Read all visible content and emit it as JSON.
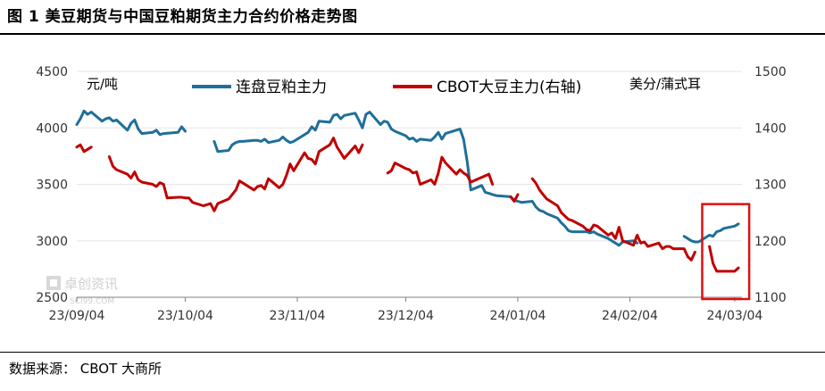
{
  "header": {
    "title": "图 1 美豆期货与中国豆粕期货主力合约价格走势图"
  },
  "footer": {
    "source": "数据来源： CBOT   大商所"
  },
  "watermark": {
    "text": "卓创资讯",
    "subtext": "SCI99.COM"
  },
  "colors": {
    "series_left": "#1f6f9a",
    "series_right": "#c00000",
    "highlight_box": "#e01010",
    "axis": "#808080"
  },
  "chart_data": {
    "type": "line",
    "left_axis": {
      "unit_label": "元/吨",
      "ticks": [
        2500,
        3000,
        3500,
        4000,
        4500
      ],
      "ylim": [
        2500,
        4500
      ]
    },
    "right_axis": {
      "unit_label": "美分/蒲式耳",
      "ticks": [
        1100,
        1200,
        1300,
        1400,
        1500
      ],
      "ylim": [
        1100,
        1500
      ]
    },
    "x_axis": {
      "ticks": [
        "23/09/04",
        "23/10/04",
        "23/11/04",
        "23/12/04",
        "24/01/04",
        "24/02/04",
        "24/03/04"
      ],
      "xlim": [
        "2023-09-04",
        "2024-03-06"
      ]
    },
    "legend_position": "top",
    "highlight": {
      "x_from": "2024-02-24",
      "x_to": "2024-03-08",
      "y_from": 1100,
      "y_to": 1265,
      "axis": "right"
    },
    "series": [
      {
        "name": "连盘豆粕主力",
        "axis": "left",
        "color": "#1f6f9a",
        "segments": [
          [
            [
              "2023-09-04",
              4030
            ],
            [
              "2023-09-05",
              4080
            ],
            [
              "2023-09-06",
              4150
            ],
            [
              "2023-09-07",
              4120
            ],
            [
              "2023-09-08",
              4140
            ],
            [
              "2023-09-11",
              4060
            ],
            [
              "2023-09-12",
              4080
            ],
            [
              "2023-09-13",
              4090
            ],
            [
              "2023-09-14",
              4060
            ],
            [
              "2023-09-15",
              4070
            ],
            [
              "2023-09-18",
              3980
            ],
            [
              "2023-09-19",
              4040
            ],
            [
              "2023-09-20",
              4070
            ],
            [
              "2023-09-21",
              3990
            ],
            [
              "2023-09-22",
              3950
            ],
            [
              "2023-09-25",
              3960
            ],
            [
              "2023-09-26",
              3980
            ],
            [
              "2023-09-27",
              3940
            ],
            [
              "2023-09-28",
              3950
            ],
            [
              "2023-10-02",
              3960
            ],
            [
              "2023-10-03",
              4010
            ],
            [
              "2023-10-04",
              3970
            ]
          ],
          [
            [
              "2023-10-12",
              3880
            ],
            [
              "2023-10-13",
              3790
            ],
            [
              "2023-10-16",
              3800
            ],
            [
              "2023-10-17",
              3850
            ],
            [
              "2023-10-18",
              3870
            ],
            [
              "2023-10-19",
              3880
            ],
            [
              "2023-10-20",
              3880
            ],
            [
              "2023-10-23",
              3890
            ],
            [
              "2023-10-24",
              3890
            ],
            [
              "2023-10-25",
              3880
            ],
            [
              "2023-10-26",
              3900
            ],
            [
              "2023-10-27",
              3870
            ],
            [
              "2023-10-30",
              3890
            ],
            [
              "2023-10-31",
              3920
            ],
            [
              "2023-11-01",
              3890
            ],
            [
              "2023-11-02",
              3870
            ],
            [
              "2023-11-03",
              3880
            ],
            [
              "2023-11-06",
              3940
            ],
            [
              "2023-11-07",
              3960
            ],
            [
              "2023-11-08",
              4010
            ],
            [
              "2023-11-09",
              3980
            ],
            [
              "2023-11-10",
              4060
            ],
            [
              "2023-11-13",
              4050
            ],
            [
              "2023-11-14",
              4110
            ],
            [
              "2023-11-15",
              4120
            ],
            [
              "2023-11-16",
              4080
            ],
            [
              "2023-11-17",
              4110
            ],
            [
              "2023-11-20",
              4130
            ],
            [
              "2023-11-21",
              4070
            ],
            [
              "2023-11-22",
              4000
            ],
            [
              "2023-11-23",
              4120
            ],
            [
              "2023-11-24",
              4140
            ],
            [
              "2023-11-27",
              4030
            ],
            [
              "2023-11-28",
              4060
            ],
            [
              "2023-11-29",
              4050
            ],
            [
              "2023-11-30",
              3990
            ],
            [
              "2023-12-01",
              3970
            ],
            [
              "2023-12-04",
              3930
            ],
            [
              "2023-12-05",
              3900
            ],
            [
              "2023-12-06",
              3910
            ],
            [
              "2023-12-07",
              3880
            ],
            [
              "2023-12-08",
              3900
            ],
            [
              "2023-12-11",
              3890
            ],
            [
              "2023-12-12",
              3920
            ],
            [
              "2023-12-13",
              3960
            ],
            [
              "2023-12-14",
              3900
            ],
            [
              "2023-12-15",
              3950
            ],
            [
              "2023-12-18",
              3980
            ],
            [
              "2023-12-19",
              3990
            ],
            [
              "2023-12-20",
              3900
            ],
            [
              "2023-12-21",
              3700
            ],
            [
              "2023-12-22",
              3450
            ],
            [
              "2023-12-25",
              3490
            ],
            [
              "2023-12-26",
              3430
            ],
            [
              "2023-12-27",
              3420
            ],
            [
              "2023-12-28",
              3410
            ],
            [
              "2023-12-29",
              3400
            ],
            [
              "2024-01-02",
              3390
            ],
            [
              "2024-01-03",
              3360
            ],
            [
              "2024-01-04",
              3350
            ],
            [
              "2024-01-05",
              3340
            ],
            [
              "2024-01-08",
              3350
            ],
            [
              "2024-01-09",
              3300
            ],
            [
              "2024-01-10",
              3270
            ],
            [
              "2024-01-11",
              3260
            ],
            [
              "2024-01-12",
              3240
            ],
            [
              "2024-01-15",
              3200
            ],
            [
              "2024-01-16",
              3160
            ],
            [
              "2024-01-17",
              3130
            ],
            [
              "2024-01-18",
              3090
            ],
            [
              "2024-01-19",
              3080
            ],
            [
              "2024-01-22",
              3080
            ],
            [
              "2024-01-23",
              3080
            ],
            [
              "2024-01-24",
              3070
            ],
            [
              "2024-01-25",
              3080
            ],
            [
              "2024-01-26",
              3060
            ],
            [
              "2024-01-29",
              3020
            ],
            [
              "2024-01-30",
              3000
            ],
            [
              "2024-01-31",
              2980
            ],
            [
              "2024-02-01",
              2960
            ],
            [
              "2024-02-02",
              2990
            ],
            [
              "2024-02-05",
              3000
            ],
            [
              "2024-02-06",
              2980
            ]
          ],
          [
            [
              "2024-02-19",
              3040
            ],
            [
              "2024-02-20",
              3020
            ],
            [
              "2024-02-21",
              3000
            ],
            [
              "2024-02-22",
              2990
            ],
            [
              "2024-02-23",
              2990
            ],
            [
              "2024-02-26",
              3050
            ],
            [
              "2024-02-27",
              3040
            ],
            [
              "2024-02-28",
              3080
            ],
            [
              "2024-02-29",
              3090
            ],
            [
              "2024-03-01",
              3110
            ],
            [
              "2024-03-04",
              3130
            ],
            [
              "2024-03-05",
              3150
            ]
          ]
        ]
      },
      {
        "name": "CBOT大豆主力(右轴)",
        "axis": "right",
        "color": "#c00000",
        "segments": [
          [
            [
              "2023-09-04",
              1366
            ],
            [
              "2023-09-05",
              1370
            ],
            [
              "2023-09-06",
              1358
            ],
            [
              "2023-09-07",
              1362
            ],
            [
              "2023-09-08",
              1366
            ]
          ],
          [
            [
              "2023-09-13",
              1349
            ],
            [
              "2023-09-14",
              1332
            ],
            [
              "2023-09-15",
              1326
            ],
            [
              "2023-09-18",
              1318
            ],
            [
              "2023-09-19",
              1311
            ],
            [
              "2023-09-20",
              1322
            ],
            [
              "2023-09-21",
              1308
            ],
            [
              "2023-09-22",
              1304
            ],
            [
              "2023-09-25",
              1300
            ],
            [
              "2023-09-26",
              1296
            ],
            [
              "2023-09-27",
              1303
            ],
            [
              "2023-09-28",
              1300
            ],
            [
              "2023-09-29",
              1276
            ],
            [
              "2023-10-02",
              1277
            ],
            [
              "2023-10-03",
              1277
            ],
            [
              "2023-10-04",
              1276
            ],
            [
              "2023-10-05",
              1276
            ],
            [
              "2023-10-06",
              1268
            ],
            [
              "2023-10-09",
              1262
            ],
            [
              "2023-10-10",
              1264
            ],
            [
              "2023-10-11",
              1266
            ],
            [
              "2023-10-12",
              1253
            ],
            [
              "2023-10-13",
              1266
            ],
            [
              "2023-10-16",
              1274
            ],
            [
              "2023-10-17",
              1282
            ],
            [
              "2023-10-18",
              1290
            ],
            [
              "2023-10-19",
              1306
            ],
            [
              "2023-10-20",
              1302
            ],
            [
              "2023-10-23",
              1290
            ],
            [
              "2023-10-24",
              1296
            ],
            [
              "2023-10-25",
              1298
            ],
            [
              "2023-10-26",
              1292
            ],
            [
              "2023-10-27",
              1310
            ],
            [
              "2023-10-30",
              1294
            ],
            [
              "2023-10-31",
              1300
            ],
            [
              "2023-11-01",
              1316
            ],
            [
              "2023-11-02",
              1336
            ],
            [
              "2023-11-03",
              1324
            ],
            [
              "2023-11-06",
              1356
            ],
            [
              "2023-11-07",
              1346
            ],
            [
              "2023-11-08",
              1344
            ],
            [
              "2023-11-09",
              1336
            ],
            [
              "2023-11-10",
              1358
            ],
            [
              "2023-11-13",
              1370
            ],
            [
              "2023-11-14",
              1382
            ],
            [
              "2023-11-15",
              1366
            ],
            [
              "2023-11-16",
              1356
            ],
            [
              "2023-11-17",
              1346
            ],
            [
              "2023-11-20",
              1368
            ],
            [
              "2023-11-21",
              1356
            ],
            [
              "2023-11-22",
              1370
            ]
          ],
          [
            [
              "2023-11-29",
              1320
            ],
            [
              "2023-11-30",
              1324
            ],
            [
              "2023-12-01",
              1338
            ],
            [
              "2023-12-04",
              1328
            ],
            [
              "2023-12-05",
              1326
            ],
            [
              "2023-12-06",
              1320
            ],
            [
              "2023-12-07",
              1322
            ],
            [
              "2023-12-08",
              1300
            ],
            [
              "2023-12-11",
              1308
            ],
            [
              "2023-12-12",
              1300
            ],
            [
              "2023-12-13",
              1320
            ],
            [
              "2023-12-14",
              1348
            ],
            [
              "2023-12-15",
              1338
            ],
            [
              "2023-12-18",
              1318
            ],
            [
              "2023-12-19",
              1326
            ],
            [
              "2023-12-20",
              1320
            ],
            [
              "2023-12-21",
              1316
            ],
            [
              "2023-12-22",
              1304
            ],
            [
              "2023-12-27",
              1318
            ],
            [
              "2023-12-28",
              1300
            ]
          ],
          [
            [
              "2024-01-02",
              1278
            ],
            [
              "2024-01-03",
              1270
            ],
            [
              "2024-01-04",
              1282
            ]
          ],
          [
            [
              "2024-01-08",
              1310
            ],
            [
              "2024-01-09",
              1302
            ],
            [
              "2024-01-10",
              1290
            ],
            [
              "2024-01-11",
              1282
            ],
            [
              "2024-01-12",
              1274
            ],
            [
              "2024-01-15",
              1262
            ],
            [
              "2024-01-16",
              1250
            ],
            [
              "2024-01-17",
              1244
            ],
            [
              "2024-01-18",
              1238
            ],
            [
              "2024-01-19",
              1236
            ],
            [
              "2024-01-22",
              1226
            ],
            [
              "2024-01-23",
              1220
            ],
            [
              "2024-01-24",
              1218
            ],
            [
              "2024-01-25",
              1228
            ],
            [
              "2024-01-26",
              1226
            ],
            [
              "2024-01-29",
              1210
            ],
            [
              "2024-01-30",
              1214
            ],
            [
              "2024-01-31",
              1204
            ],
            [
              "2024-02-01",
              1224
            ],
            [
              "2024-02-02",
              1200
            ],
            [
              "2024-02-05",
              1192
            ],
            [
              "2024-02-06",
              1210
            ],
            [
              "2024-02-07",
              1196
            ],
            [
              "2024-02-08",
              1198
            ],
            [
              "2024-02-09",
              1190
            ],
            [
              "2024-02-12",
              1196
            ],
            [
              "2024-02-13",
              1186
            ],
            [
              "2024-02-14",
              1190
            ],
            [
              "2024-02-15",
              1190
            ],
            [
              "2024-02-16",
              1186
            ],
            [
              "2024-02-19",
              1186
            ],
            [
              "2024-02-20",
              1172
            ],
            [
              "2024-02-21",
              1166
            ],
            [
              "2024-02-22",
              1180
            ]
          ],
          [
            [
              "2024-02-26",
              1190
            ],
            [
              "2024-02-27",
              1160
            ],
            [
              "2024-02-28",
              1146
            ],
            [
              "2024-02-29",
              1146
            ],
            [
              "2024-03-01",
              1146
            ],
            [
              "2024-03-04",
              1146
            ],
            [
              "2024-03-05",
              1152
            ]
          ]
        ]
      }
    ]
  }
}
